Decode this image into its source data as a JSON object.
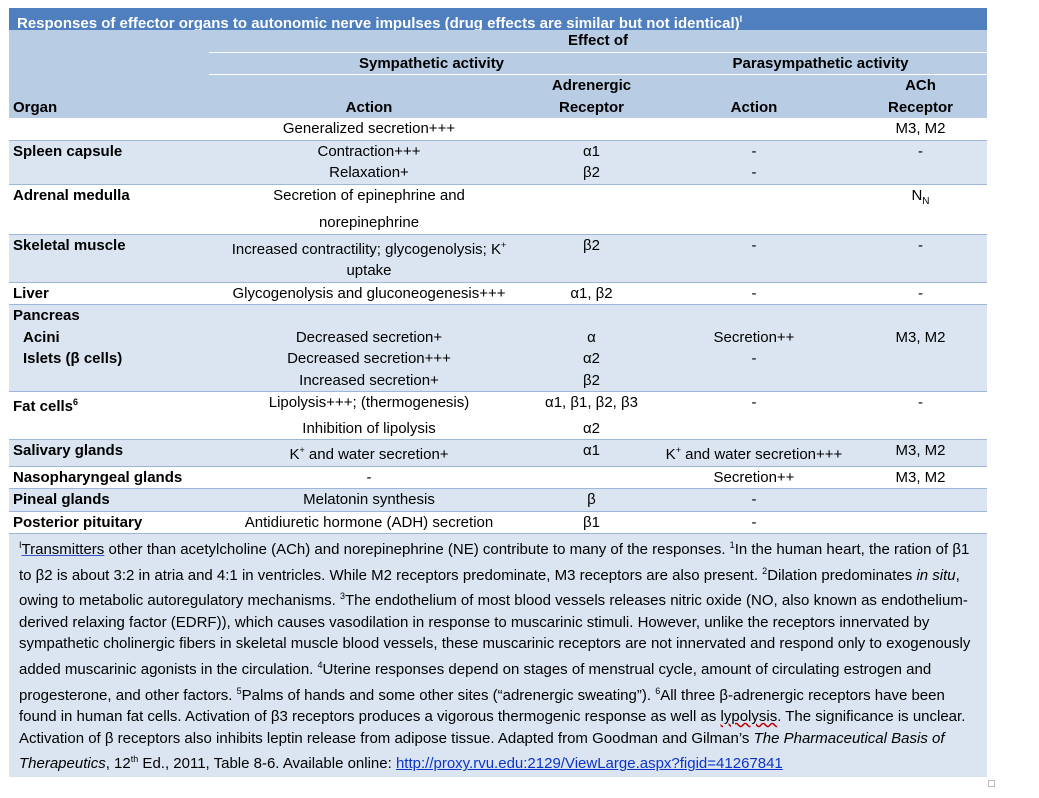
{
  "title": "Responses of effector organs to autonomic nerve impulses (drug effects are similar but not identical)",
  "title_sup": "I",
  "header": {
    "effect_of": "Effect of",
    "sympathetic": "Sympathetic activity",
    "parasympathetic": "Parasympathetic activity",
    "adrenergic_1": "Adrenergic",
    "adrenergic_2": "Receptor",
    "ach_1": "ACh",
    "ach_2": "Receptor",
    "organ": "Organ",
    "action": "Action",
    "p_action": "Action"
  },
  "rows": {
    "r0": {
      "organ": "",
      "action": "Generalized secretion+++",
      "adr": "",
      "paction": "",
      "ach": "M3, M2"
    },
    "r1": {
      "organ": "Spleen capsule",
      "action": "Contraction+++",
      "adr": "α1",
      "paction": "-",
      "ach": "-"
    },
    "r2": {
      "organ": "",
      "action": "Relaxation+",
      "adr": "β2",
      "paction": "-",
      "ach": ""
    },
    "r3": {
      "organ": "Adrenal medulla",
      "action": "Secretion of epinephrine and",
      "adr": "",
      "paction": "",
      "ach": "N",
      "ach_sub": "N"
    },
    "r4": {
      "organ": "",
      "action": "norepinephrine",
      "adr": "",
      "paction": "",
      "ach": ""
    },
    "r5": {
      "organ": "Skeletal muscle",
      "action_pre": "Increased contractility; glycogenolysis; K",
      "action_sup": "+",
      "adr": "β2",
      "paction": "-",
      "ach": "-"
    },
    "r6": {
      "organ": "",
      "action": "uptake",
      "adr": "",
      "paction": "",
      "ach": ""
    },
    "r7": {
      "organ": "Liver",
      "action": "Glycogenolysis and gluconeogenesis+++",
      "adr": "α1, β2",
      "paction": "-",
      "ach": "-"
    },
    "r8": {
      "organ": "Pancreas",
      "action": "",
      "adr": "",
      "paction": "",
      "ach": ""
    },
    "r9": {
      "organ": "Acini",
      "action": "Decreased secretion+",
      "adr": "α",
      "paction": "Secretion++",
      "ach": "M3, M2"
    },
    "r10": {
      "organ": "Islets (β cells)",
      "action": "Decreased secretion+++",
      "adr": "α2",
      "paction": "-",
      "ach": ""
    },
    "r11": {
      "organ": "",
      "action": "Increased secretion+",
      "adr": "β2",
      "paction": "",
      "ach": ""
    },
    "r12": {
      "organ": "Fat cells",
      "organ_sup": "6",
      "action": "Lipolysis+++; (thermogenesis)",
      "adr": "α1, β1, β2, β3",
      "paction": "-",
      "ach": "-"
    },
    "r13": {
      "organ": "",
      "action": "Inhibition of lipolysis",
      "adr": "α2",
      "paction": "",
      "ach": ""
    },
    "r14": {
      "organ": "Salivary glands",
      "action_pre": "K",
      "action_sup": "+",
      "action_post": " and water secretion+",
      "adr": "α1",
      "paction_pre": "K",
      "paction_sup": "+",
      "paction_post": " and water secretion+++",
      "ach": "M3, M2"
    },
    "r15": {
      "organ": "Nasopharyngeal glands",
      "action": "-",
      "adr": "",
      "paction": "Secretion++",
      "ach": "M3, M2"
    },
    "r16": {
      "organ": "Pineal glands",
      "action": "Melatonin synthesis",
      "adr": "β",
      "paction": "-",
      "ach": ""
    },
    "r17": {
      "organ": "Posterior pituitary",
      "action": "Antidiuretic hormone (ADH) secretion",
      "adr": "β1",
      "paction": "-",
      "ach": ""
    }
  },
  "footnote": {
    "s1": "Transmitters",
    "t1": " other than acetylcholine (ACh) and norepinephrine (NE) contribute to many of the responses. ",
    "t2": "In the human heart, the ration of β1 to β2 is about 3:2 in atria and 4:1 in ventricles. While M2 receptors predominate, M3 receptors are also present. ",
    "t3": "Dilation predominates ",
    "t3i": "in situ",
    "t3b": ", owing to metabolic autoregulatory mechanisms. ",
    "t4": "The endothelium of most blood vessels releases nitric oxide (NO, also known as endothelium-derived relaxing factor (EDRF)), which causes vasodilation in response to muscarinic stimuli. However, unlike the receptors innervated by sympathetic cholinergic fibers in skeletal muscle blood vessels, these muscarinic receptors are not innervated and respond only to exogenously added muscarinic agonists in the circulation. ",
    "t5": "Uterine responses depend on stages of menstrual cycle, amount of circulating estrogen and progesterone, and other factors. ",
    "t6": "Palms of hands and some other sites (“adrenergic sweating”). ",
    "t7": "All three β-adrenergic receptors have been found in human fat cells. Activation of β3 receptors produces a vigorous thermogenic response as well as ",
    "t7s": "lypolysis",
    "t7b": ". The significance is unclear. Activation of β receptors also inhibits leptin release from adipose tissue. Adapted from Goodman and Gilman’s ",
    "t8i": "The Pharmaceutical Basis of Therapeutics",
    "t8": ", 12",
    "t8sup": "th",
    "t9": " Ed., 2011, Table 8-6. Available online: ",
    "link": "http://proxy.rvu.edu:2129/ViewLarge.aspx?figid=41267841",
    "m0": "I",
    "m1": "1",
    "m2": "2",
    "m3": "3",
    "m4": "4",
    "m5": "5",
    "m6": "6"
  }
}
